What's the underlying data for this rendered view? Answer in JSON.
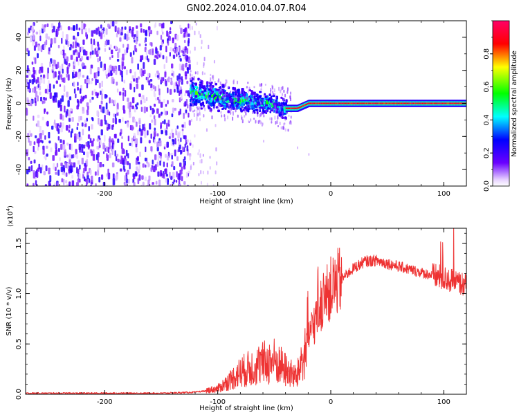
{
  "title": "GN02.2024.010.04.07.R04",
  "chart_data": [
    {
      "type": "heatmap",
      "xlabel": "Height of straight line (km)",
      "ylabel": "Frequency (Hz)",
      "xlim": [
        -270,
        120
      ],
      "ylim": [
        -50,
        50
      ],
      "xticks": [
        -200,
        -100,
        0,
        100
      ],
      "yticks": [
        -40,
        -20,
        0,
        20,
        40
      ],
      "colorbar": {
        "label": "Normalized spectral amplitude",
        "range": [
          0,
          1
        ],
        "ticks": [
          0.0,
          0.2,
          0.4,
          0.6,
          0.8
        ],
        "colormap": [
          "#ffffff",
          "#6a00ff",
          "#0000ff",
          "#00ffff",
          "#00ff00",
          "#ffff00",
          "#ff0000",
          "#ff0066"
        ]
      },
      "regions": [
        {
          "x": [
            -270,
            -125
          ],
          "y": [
            -50,
            50
          ],
          "description_level": 0.3
        },
        {
          "x": [
            -125,
            -40
          ],
          "y": [
            -10,
            15
          ],
          "description_level": 0.45
        },
        {
          "x": [
            -40,
            120
          ],
          "y": [
            -2,
            2
          ],
          "description_level": 0.85
        }
      ],
      "ridge": [
        {
          "x": -125,
          "y": 8
        },
        {
          "x": -110,
          "y": 6
        },
        {
          "x": -90,
          "y": 3
        },
        {
          "x": -70,
          "y": 2
        },
        {
          "x": -50,
          "y": 0
        },
        {
          "x": -40,
          "y": -3
        },
        {
          "x": -30,
          "y": -3
        },
        {
          "x": -20,
          "y": 0
        },
        {
          "x": 0,
          "y": 0
        },
        {
          "x": 120,
          "y": 0
        }
      ]
    },
    {
      "type": "line",
      "xlabel": "Height of straight line (km)",
      "ylabel": "SNR (10 * v/v)",
      "yscale_label": "(x10",
      "yscale_exp": "4",
      "yscale_close": ")",
      "xlim": [
        -270,
        120
      ],
      "ylim": [
        0,
        1.65
      ],
      "xticks": [
        -200,
        -100,
        0,
        100
      ],
      "yticks": [
        0.0,
        0.5,
        1.0,
        1.5
      ],
      "color": "#ee3333",
      "x": [
        -270,
        -200,
        -150,
        -120,
        -100,
        -90,
        -80,
        -70,
        -60,
        -50,
        -40,
        -30,
        -25,
        -20,
        -15,
        -10,
        -5,
        0,
        10,
        20,
        30,
        40,
        50,
        60,
        70,
        80,
        90,
        100,
        110,
        120
      ],
      "y": [
        0.01,
        0.01,
        0.01,
        0.02,
        0.05,
        0.12,
        0.2,
        0.24,
        0.28,
        0.3,
        0.22,
        0.15,
        0.35,
        0.55,
        0.7,
        0.85,
        0.95,
        1.05,
        1.15,
        1.25,
        1.32,
        1.33,
        1.3,
        1.27,
        1.24,
        1.21,
        1.18,
        1.15,
        1.12,
        1.08
      ]
    }
  ],
  "xtick_labels": [
    "-200",
    "-100",
    "0",
    "100"
  ],
  "heat_ytick_labels": [
    "40",
    "20",
    "0",
    "-20",
    "-40"
  ],
  "cbar_tick_labels": [
    "0.0",
    "0.2",
    "0.4",
    "0.6",
    "0.8"
  ],
  "snr_ytick_labels": [
    "0.0",
    "0.5",
    "1.0",
    "1.5"
  ]
}
